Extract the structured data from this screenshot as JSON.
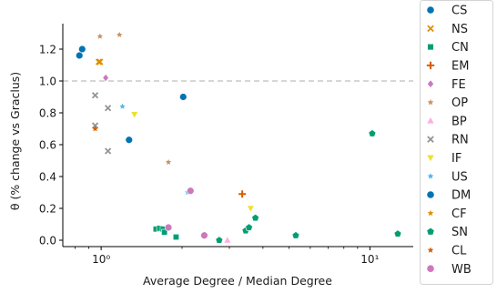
{
  "chart_data": {
    "type": "scatter",
    "title": "",
    "xlabel": "Average Degree / Median Degree",
    "ylabel": "θ (% change vs Graclus)",
    "xscale": "log",
    "xlim": [
      0.72,
      14.5
    ],
    "ylim": [
      -0.04,
      1.36
    ],
    "x_ticks": [
      {
        "value": 1,
        "label": "10⁰"
      },
      {
        "value": 10,
        "label": "10¹"
      }
    ],
    "y_ticks": [
      0.0,
      0.2,
      0.4,
      0.6,
      0.8,
      1.0,
      1.2
    ],
    "y_tick_labels": [
      "0.0",
      "0.2",
      "0.4",
      "0.6",
      "0.8",
      "1.0",
      "1.2"
    ],
    "reference_line": {
      "y": 1.0,
      "style": "dashed",
      "color": "#c8c8c8"
    },
    "grid": false,
    "legend_position": "outside right",
    "series": [
      {
        "name": "CS",
        "color": "#0173b2",
        "marker": "circle",
        "points": [
          [
            0.83,
            1.16
          ],
          [
            0.85,
            1.2
          ]
        ]
      },
      {
        "name": "NS",
        "color": "#de8f05",
        "marker": "x",
        "points": [
          [
            0.98,
            1.12
          ],
          [
            0.99,
            1.12
          ]
        ]
      },
      {
        "name": "CN",
        "color": "#029e73",
        "marker": "square",
        "points": [
          [
            1.6,
            0.07
          ],
          [
            1.65,
            0.075
          ],
          [
            1.7,
            0.07
          ],
          [
            1.72,
            0.05
          ],
          [
            1.9,
            0.02
          ]
        ]
      },
      {
        "name": "EM",
        "color": "#d55e00",
        "marker": "plus",
        "points": [
          [
            3.35,
            0.29
          ]
        ]
      },
      {
        "name": "FE",
        "color": "#cc78bc",
        "marker": "diamond",
        "points": [
          [
            1.04,
            1.02
          ]
        ]
      },
      {
        "name": "OP",
        "color": "#ca9161",
        "marker": "star",
        "points": [
          [
            0.99,
            1.28
          ],
          [
            1.17,
            1.29
          ],
          [
            1.78,
            0.49
          ]
        ]
      },
      {
        "name": "BP",
        "color": "#fbafe4",
        "marker": "triangle-up",
        "points": [
          [
            2.95,
            0.0
          ]
        ]
      },
      {
        "name": "RN",
        "color": "#949494",
        "marker": "x",
        "points": [
          [
            0.95,
            0.91
          ],
          [
            1.06,
            0.83
          ],
          [
            1.06,
            0.56
          ],
          [
            0.95,
            0.72
          ]
        ]
      },
      {
        "name": "IF",
        "color": "#ece133",
        "marker": "triangle-down",
        "points": [
          [
            1.33,
            0.79
          ],
          [
            3.6,
            0.2
          ]
        ]
      },
      {
        "name": "US",
        "color": "#56b4e9",
        "marker": "star",
        "points": [
          [
            1.2,
            0.84
          ],
          [
            2.1,
            0.3
          ]
        ]
      },
      {
        "name": "DM",
        "color": "#0173b2",
        "marker": "circle",
        "points": [
          [
            1.27,
            0.63
          ],
          [
            2.02,
            0.9
          ]
        ]
      },
      {
        "name": "CF",
        "color": "#de8f05",
        "marker": "star",
        "points": [
          [
            0.95,
            0.7
          ]
        ]
      },
      {
        "name": "SN",
        "color": "#029e73",
        "marker": "pentagon",
        "points": [
          [
            2.75,
            0.0
          ],
          [
            3.45,
            0.06
          ],
          [
            3.55,
            0.08
          ],
          [
            3.75,
            0.14
          ],
          [
            5.3,
            0.03
          ],
          [
            10.2,
            0.67
          ],
          [
            12.7,
            0.04
          ]
        ]
      },
      {
        "name": "CL",
        "color": "#d55e00",
        "marker": "star",
        "points": [
          [
            0.95,
            0.7
          ]
        ]
      },
      {
        "name": "WB",
        "color": "#cc78bc",
        "marker": "circle",
        "points": [
          [
            1.78,
            0.08
          ],
          [
            2.15,
            0.31
          ],
          [
            2.42,
            0.03
          ]
        ]
      }
    ]
  }
}
